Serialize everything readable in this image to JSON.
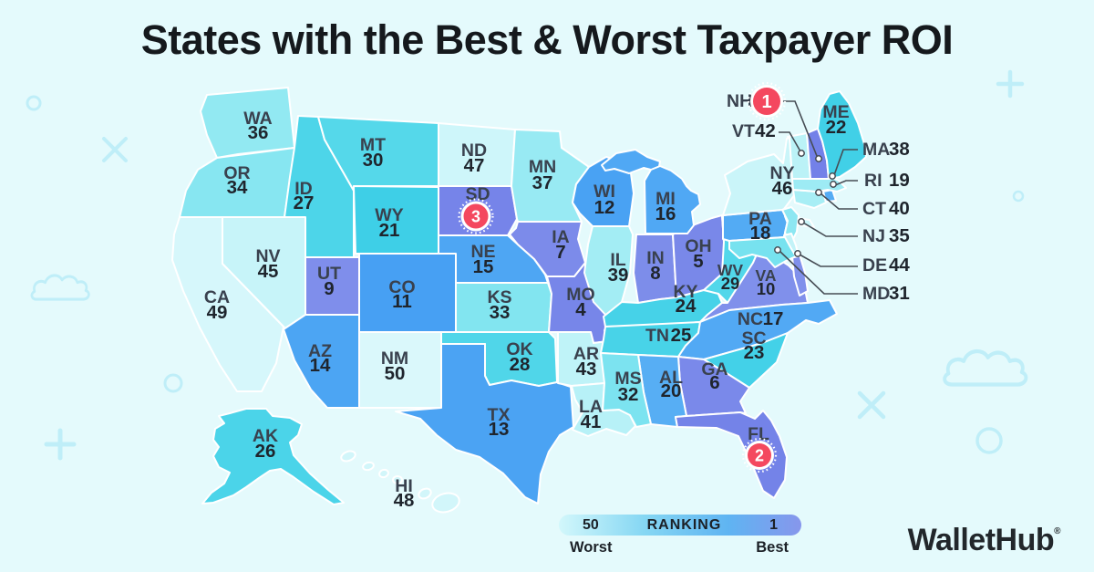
{
  "title": "States with the Best & Worst Taxpayer ROI",
  "legend": {
    "worst_value": "50",
    "center_label": "RANKING",
    "best_value": "1",
    "worst_caption": "Worst",
    "best_caption": "Best"
  },
  "logo": {
    "name": "WalletHub",
    "trademark": "®"
  },
  "colors": {
    "background": "#e4fafc",
    "decoration": "#bfeef8",
    "badge": "#f4485f",
    "badge_text": "#ffffff",
    "state_border": "#ffffff",
    "leader_line": "#464c54",
    "scale": [
      {
        "rank": 1,
        "color": "#7381e8"
      },
      {
        "rank": 10,
        "color": "#8090eb"
      },
      {
        "rank": 11,
        "color": "#47a0f3"
      },
      {
        "rank": 20,
        "color": "#57aef4"
      },
      {
        "rank": 21,
        "color": "#3ecfe7"
      },
      {
        "rank": 30,
        "color": "#55d8ea"
      },
      {
        "rank": 31,
        "color": "#77e2ef"
      },
      {
        "rank": 40,
        "color": "#a8eef5"
      },
      {
        "rank": 41,
        "color": "#b7f1f7"
      },
      {
        "rank": 50,
        "color": "#daf8fb"
      }
    ]
  },
  "chart_data": {
    "type": "heatmap",
    "subtype": "us-state-choropleth",
    "title": "States with the Best & Worst Taxpayer ROI",
    "value_label": "Taxpayer ROI ranking",
    "scale": {
      "best": 1,
      "worst": 50
    },
    "legend_position": "bottom",
    "states": [
      {
        "abbr": "WA",
        "rank": 36
      },
      {
        "abbr": "OR",
        "rank": 34
      },
      {
        "abbr": "CA",
        "rank": 49
      },
      {
        "abbr": "NV",
        "rank": 45
      },
      {
        "abbr": "ID",
        "rank": 27
      },
      {
        "abbr": "MT",
        "rank": 30
      },
      {
        "abbr": "WY",
        "rank": 21
      },
      {
        "abbr": "UT",
        "rank": 9
      },
      {
        "abbr": "CO",
        "rank": 11
      },
      {
        "abbr": "AZ",
        "rank": 14
      },
      {
        "abbr": "NM",
        "rank": 50
      },
      {
        "abbr": "ND",
        "rank": 47
      },
      {
        "abbr": "SD",
        "rank": 3
      },
      {
        "abbr": "NE",
        "rank": 15
      },
      {
        "abbr": "KS",
        "rank": 33
      },
      {
        "abbr": "OK",
        "rank": 28
      },
      {
        "abbr": "TX",
        "rank": 13
      },
      {
        "abbr": "MN",
        "rank": 37
      },
      {
        "abbr": "IA",
        "rank": 7
      },
      {
        "abbr": "MO",
        "rank": 4
      },
      {
        "abbr": "AR",
        "rank": 43
      },
      {
        "abbr": "LA",
        "rank": 41
      },
      {
        "abbr": "WI",
        "rank": 12
      },
      {
        "abbr": "IL",
        "rank": 39
      },
      {
        "abbr": "IN",
        "rank": 8
      },
      {
        "abbr": "OH",
        "rank": 5
      },
      {
        "abbr": "MI",
        "rank": 16
      },
      {
        "abbr": "KY",
        "rank": 24
      },
      {
        "abbr": "TN",
        "rank": 25
      },
      {
        "abbr": "WV",
        "rank": 29
      },
      {
        "abbr": "VA",
        "rank": 10
      },
      {
        "abbr": "NC",
        "rank": 17
      },
      {
        "abbr": "SC",
        "rank": 23
      },
      {
        "abbr": "GA",
        "rank": 6
      },
      {
        "abbr": "AL",
        "rank": 20
      },
      {
        "abbr": "MS",
        "rank": 32
      },
      {
        "abbr": "FL",
        "rank": 2
      },
      {
        "abbr": "PA",
        "rank": 18
      },
      {
        "abbr": "NY",
        "rank": 46
      },
      {
        "abbr": "NJ",
        "rank": 35
      },
      {
        "abbr": "DE",
        "rank": 44
      },
      {
        "abbr": "MD",
        "rank": 31
      },
      {
        "abbr": "CT",
        "rank": 40
      },
      {
        "abbr": "RI",
        "rank": 19
      },
      {
        "abbr": "MA",
        "rank": 38
      },
      {
        "abbr": "VT",
        "rank": 42
      },
      {
        "abbr": "NH",
        "rank": 1
      },
      {
        "abbr": "ME",
        "rank": 22
      },
      {
        "abbr": "AK",
        "rank": 26
      },
      {
        "abbr": "HI",
        "rank": 48
      }
    ],
    "highlighted_top3": [
      {
        "abbr": "NH",
        "rank": 1
      },
      {
        "abbr": "FL",
        "rank": 2
      },
      {
        "abbr": "SD",
        "rank": 3
      }
    ]
  }
}
